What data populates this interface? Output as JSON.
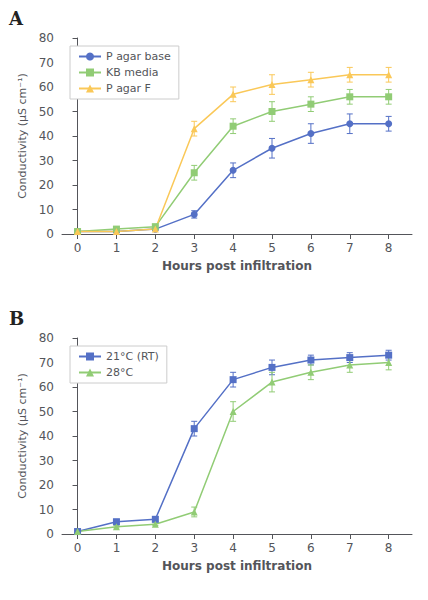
{
  "chart_data": [
    {
      "type": "line",
      "title": "A",
      "xlabel": "Hours post infiltration",
      "ylabel": "Conductivity (μS cm⁻¹)",
      "x": [
        0,
        1,
        2,
        3,
        4,
        5,
        6,
        7,
        8
      ],
      "xlim": [
        -0.4,
        8.6
      ],
      "xticks": [
        0,
        1,
        2,
        3,
        4,
        5,
        6,
        7,
        8
      ],
      "ylim": [
        0,
        80
      ],
      "yticks": [
        0,
        10,
        20,
        30,
        40,
        50,
        60,
        70,
        80
      ],
      "grid": false,
      "legend": "upper left",
      "series": [
        {
          "name": "P agar base",
          "marker": "circle",
          "values": [
            1,
            1,
            2,
            8,
            26,
            35,
            41,
            45,
            45
          ],
          "yerr": [
            0.3,
            0.3,
            0.4,
            1.5,
            3,
            4,
            4,
            4,
            3
          ]
        },
        {
          "name": "KB media",
          "marker": "square",
          "values": [
            1,
            2,
            3,
            25,
            44,
            50,
            53,
            56,
            56
          ],
          "yerr": [
            0.3,
            0.5,
            0.5,
            3,
            3,
            4,
            3,
            3,
            3
          ]
        },
        {
          "name": "P agar F",
          "marker": "triangle",
          "values": [
            1,
            1,
            2,
            43,
            57,
            61,
            63,
            65,
            65
          ],
          "yerr": [
            0.3,
            0.3,
            0.4,
            3,
            3,
            4,
            3,
            3,
            3
          ]
        }
      ]
    },
    {
      "type": "line",
      "title": "B",
      "xlabel": "Hours post infiltration",
      "ylabel": "Conductivity (μS cm⁻¹)",
      "x": [
        0,
        1,
        2,
        3,
        4,
        5,
        6,
        7,
        8
      ],
      "xlim": [
        -0.4,
        8.6
      ],
      "xticks": [
        0,
        1,
        2,
        3,
        4,
        5,
        6,
        7,
        8
      ],
      "ylim": [
        0,
        80
      ],
      "yticks": [
        0,
        10,
        20,
        30,
        40,
        50,
        60,
        70,
        80
      ],
      "grid": false,
      "legend": "upper left",
      "series": [
        {
          "name": "21°C (RT)",
          "marker": "square",
          "values": [
            1,
            5,
            6,
            43,
            63,
            68,
            71,
            72,
            73
          ],
          "yerr": [
            0.3,
            1,
            1,
            3,
            3,
            3,
            2,
            2,
            2
          ]
        },
        {
          "name": "28°C",
          "marker": "triangle",
          "values": [
            1,
            3,
            4,
            9,
            50,
            62,
            66,
            69,
            70
          ],
          "yerr": [
            0.3,
            0.5,
            0.5,
            2,
            4,
            4,
            3,
            3,
            3
          ]
        }
      ]
    }
  ]
}
